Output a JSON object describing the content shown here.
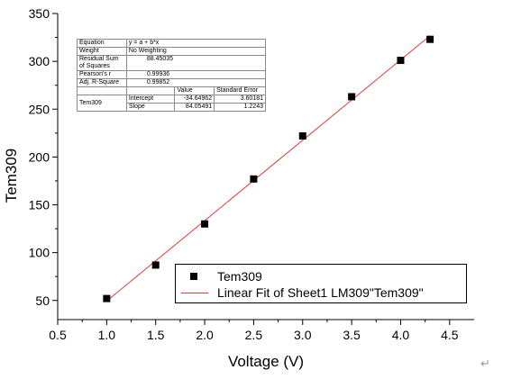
{
  "chart_data": {
    "type": "scatter",
    "xlabel": "Voltage (V)",
    "ylabel": "Tem309",
    "xlim": [
      0.5,
      4.75
    ],
    "ylim": [
      30,
      350
    ],
    "xticks": [
      0.5,
      1.0,
      1.5,
      2.0,
      2.5,
      3.0,
      3.5,
      4.0,
      4.5
    ],
    "yticks": [
      50,
      100,
      150,
      200,
      250,
      300,
      350
    ],
    "xtick_labels": [
      "0.5",
      "1.0",
      "1.5",
      "2.0",
      "2.5",
      "3.0",
      "3.5",
      "4.0",
      "4.5"
    ],
    "ytick_labels": [
      "50",
      "100",
      "150",
      "200",
      "250",
      "300",
      "350"
    ],
    "grid": false,
    "legend_position": "bottom-right",
    "series": [
      {
        "name": "Tem309",
        "style": "square-marker",
        "color": "#000000",
        "x": [
          1.0,
          1.5,
          2.0,
          2.5,
          3.0,
          3.5,
          4.0,
          4.3
        ],
        "y": [
          52,
          87,
          130,
          177,
          222,
          263,
          301,
          323
        ]
      },
      {
        "name": "Linear Fit of Sheet1 LM309\"Tem309\"",
        "style": "line",
        "color": "#e53935",
        "intercept": -34.64962,
        "slope": 84.05491,
        "x_range": [
          1.0,
          4.3
        ]
      }
    ]
  },
  "fit_table": {
    "equation_label": "Equation",
    "equation_value": "y = a + b*x",
    "weight_label": "Weight",
    "weight_value": "No Weighting",
    "rss_label": "Residual Sum of Squares",
    "rss_value": "88.45035",
    "pearson_label": "Pearson's r",
    "pearson_value": "0.99936",
    "adjr2_label": "Adj. R-Square",
    "adjr2_value": "0.99852",
    "value_header": "Value",
    "stderr_header": "Standard Error",
    "row_name": "Tem309",
    "intercept_label": "Intercept",
    "intercept_value": "-34.64962",
    "intercept_err": "3.60181",
    "slope_label": "Slope",
    "slope_value": "84.05491",
    "slope_err": "1.2243"
  },
  "return_glyph": "↵"
}
